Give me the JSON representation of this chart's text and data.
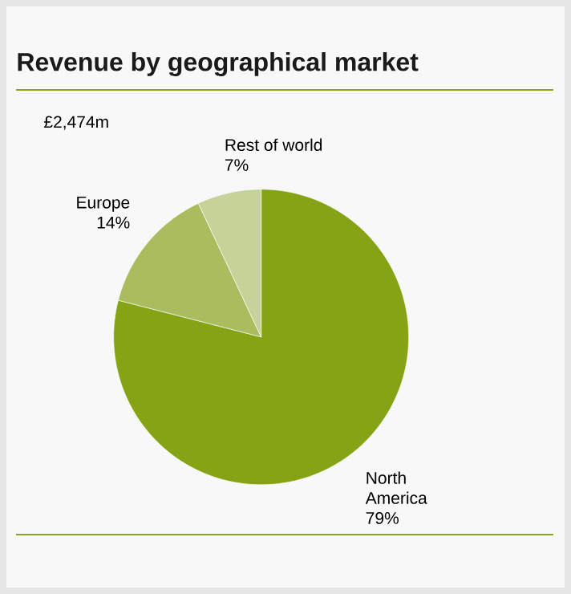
{
  "chart_data": {
    "type": "pie",
    "title": "Revenue by geographical market",
    "categories": [
      "North America",
      "Europe",
      "Rest of world"
    ],
    "values": [
      79,
      14,
      7
    ],
    "value_labels": [
      "79%",
      "14%",
      "7%"
    ],
    "colors": [
      "#86a316",
      "#aabd5e",
      "#c6d398"
    ],
    "annotations": [
      "£2,474m"
    ]
  }
}
